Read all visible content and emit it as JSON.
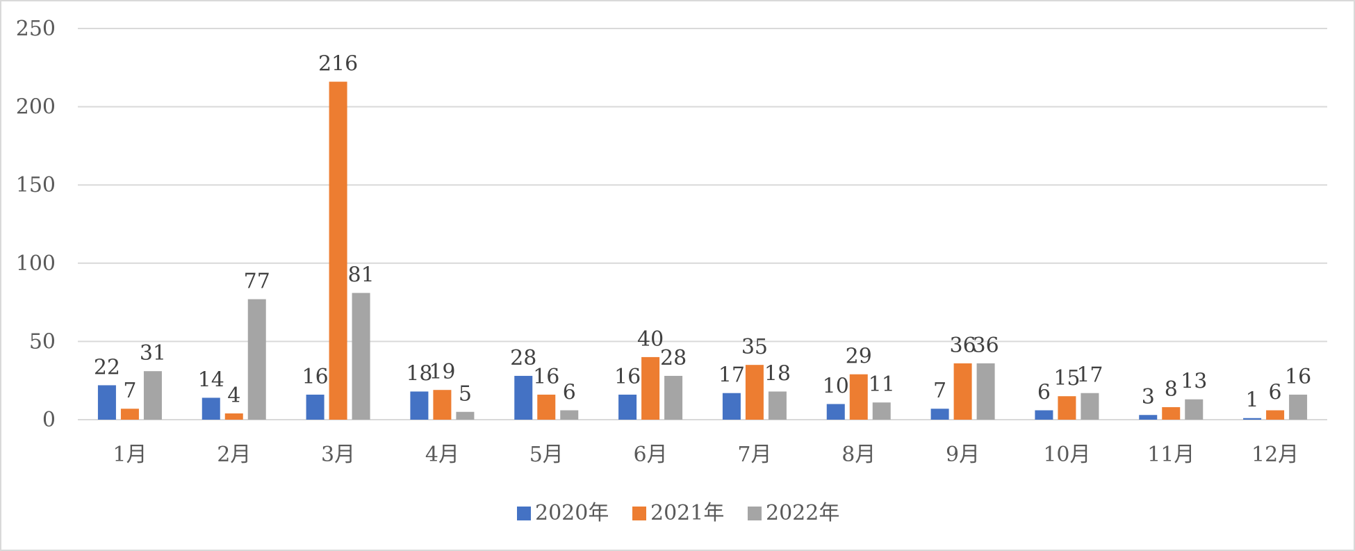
{
  "chart_data": {
    "type": "bar",
    "categories": [
      "1月",
      "2月",
      "3月",
      "4月",
      "5月",
      "6月",
      "7月",
      "8月",
      "9月",
      "10月",
      "11月",
      "12月"
    ],
    "series": [
      {
        "name": "2020年",
        "color": "#4472c4",
        "values": [
          22,
          14,
          16,
          18,
          28,
          16,
          17,
          10,
          7,
          6,
          3,
          1
        ]
      },
      {
        "name": "2021年",
        "color": "#ed7d31",
        "values": [
          7,
          4,
          216,
          19,
          16,
          40,
          35,
          29,
          36,
          15,
          8,
          6
        ]
      },
      {
        "name": "2022年",
        "color": "#a5a5a5",
        "values": [
          31,
          77,
          81,
          5,
          6,
          28,
          18,
          11,
          36,
          17,
          13,
          16
        ]
      }
    ],
    "ylim": [
      0,
      250
    ],
    "yticks": [
      0,
      50,
      100,
      150,
      200,
      250
    ],
    "grid": true,
    "gridline_color": "#d9d9d9",
    "legend_position": "bottom",
    "data_labels": true
  }
}
